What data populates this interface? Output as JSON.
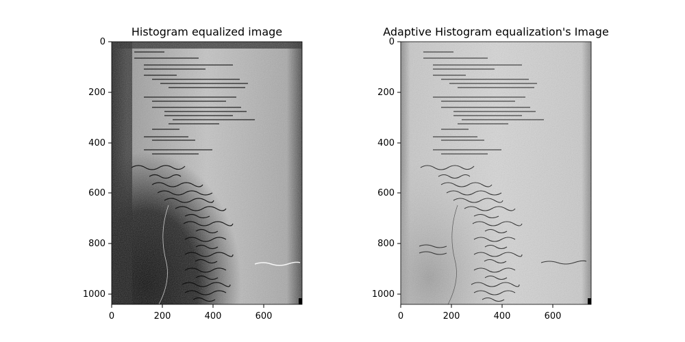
{
  "chart_data": [
    {
      "type": "image",
      "title": "Histogram equalized image",
      "xlabel": "",
      "ylabel": "",
      "xlim": [
        0,
        750
      ],
      "ylim": [
        1040,
        0
      ],
      "xticks": [
        0,
        200,
        400,
        600
      ],
      "yticks": [
        0,
        200,
        400,
        600,
        800,
        1000
      ],
      "xtick_labels": [
        "0",
        "200",
        "400",
        "600"
      ],
      "ytick_labels": [
        "0",
        "200",
        "400",
        "600",
        "800",
        "1000"
      ],
      "content": "grayscale scanned document page: typed code listing in upper half, handwritten code in lower half, high contrast with dark lower-left region",
      "colors": {
        "paper": "#b8b8b8",
        "dark_region": "#1a1a1a",
        "ink": "#0a0a0a"
      }
    },
    {
      "type": "image",
      "title": "Adaptive Histogram equalization's Image",
      "xlabel": "",
      "ylabel": "",
      "xlim": [
        0,
        750
      ],
      "ylim": [
        1040,
        0
      ],
      "xticks": [
        0,
        200,
        400,
        600
      ],
      "yticks": [
        0,
        200,
        400,
        600,
        800,
        1000
      ],
      "xtick_labels": [
        "0",
        "200",
        "400",
        "600"
      ],
      "ytick_labels": [
        "0",
        "200",
        "400",
        "600",
        "800",
        "1000"
      ],
      "content": "same scanned document page with adaptive equalization: evenly lit light-gray background, typed code in upper half, handwritten code in lower half",
      "colors": {
        "paper": "#cfcfcf",
        "dark_region": "#a9a9a9",
        "ink": "#202020"
      }
    }
  ]
}
